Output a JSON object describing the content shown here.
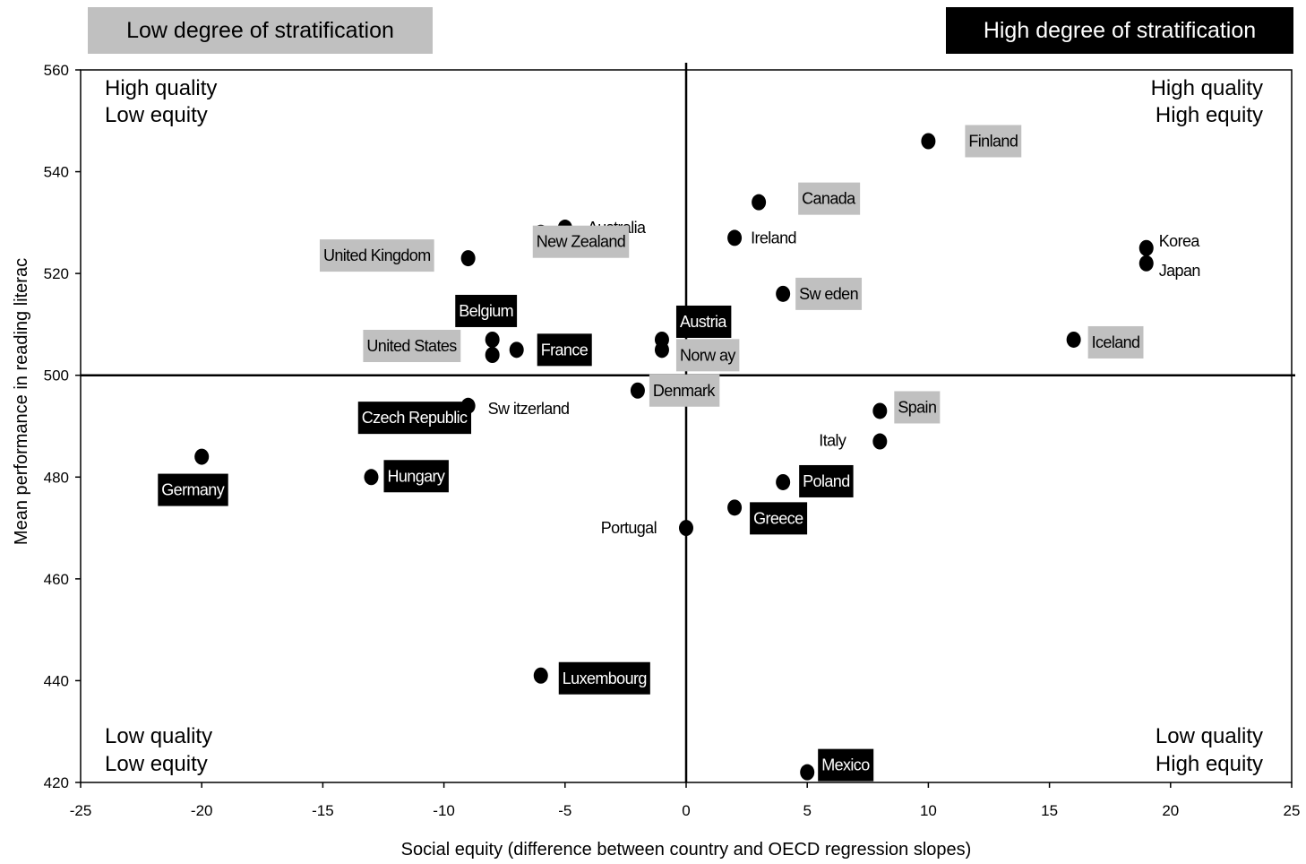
{
  "legend": {
    "low_label": "Low degree of stratification",
    "high_label": "High degree of stratification",
    "low_color": "#c0c0c0",
    "high_color": "#000000"
  },
  "quadrants": {
    "top_left": [
      "High quality",
      "Low equity"
    ],
    "top_right": [
      "High quality",
      "High equity"
    ],
    "bottom_left": [
      "Low quality",
      "Low equity"
    ],
    "bottom_right": [
      "Low quality",
      "High equity"
    ]
  },
  "chart_data": {
    "type": "scatter",
    "xlabel": "Social equity (difference between country and OECD regression slopes)",
    "ylabel": "Mean performance in reading literac",
    "xlim": [
      -25,
      25
    ],
    "ylim": [
      420,
      560
    ],
    "xticks": [
      -25,
      -20,
      -15,
      -10,
      -5,
      0,
      5,
      10,
      15,
      20,
      25
    ],
    "yticks": [
      420,
      440,
      460,
      480,
      500,
      520,
      540,
      560
    ],
    "x_ref": 0,
    "y_ref": 500,
    "grid": false,
    "points": [
      {
        "label": "Finland",
        "x": 10,
        "y": 546,
        "group": "low"
      },
      {
        "label": "Canada",
        "x": 3,
        "y": 534,
        "group": "low"
      },
      {
        "label": "Ireland",
        "x": 2,
        "y": 527,
        "group": "none"
      },
      {
        "label": "Korea",
        "x": 19,
        "y": 525,
        "group": "none"
      },
      {
        "label": "Japan",
        "x": 19,
        "y": 522,
        "group": "none"
      },
      {
        "label": "Sw eden",
        "x": 4,
        "y": 516,
        "group": "low"
      },
      {
        "label": "Iceland",
        "x": 16,
        "y": 507,
        "group": "low"
      },
      {
        "label": "Australia",
        "x": -5,
        "y": 529,
        "group": "none"
      },
      {
        "label": "New Zealand",
        "x": -6,
        "y": 528,
        "group": "low"
      },
      {
        "label": "United Kingdom",
        "x": -9,
        "y": 523,
        "group": "low"
      },
      {
        "label": "Belgium",
        "x": -8,
        "y": 507,
        "group": "high"
      },
      {
        "label": "United States",
        "x": -8,
        "y": 504,
        "group": "low"
      },
      {
        "label": "France",
        "x": -7,
        "y": 505,
        "group": "high"
      },
      {
        "label": "Austria",
        "x": -1,
        "y": 507,
        "group": "high"
      },
      {
        "label": "Norw ay",
        "x": -1,
        "y": 505,
        "group": "low"
      },
      {
        "label": "Denmark",
        "x": -2,
        "y": 497,
        "group": "low"
      },
      {
        "label": "Sw itzerland",
        "x": -9,
        "y": 494,
        "group": "none"
      },
      {
        "label": "Czech Republic",
        "x": -10,
        "y": 492,
        "group": "high"
      },
      {
        "label": "Germany",
        "x": -20,
        "y": 484,
        "group": "high"
      },
      {
        "label": "Hungary",
        "x": -13,
        "y": 480,
        "group": "high"
      },
      {
        "label": "Spain",
        "x": 8,
        "y": 493,
        "group": "low"
      },
      {
        "label": "Italy",
        "x": 8,
        "y": 487,
        "group": "none"
      },
      {
        "label": "Poland",
        "x": 4,
        "y": 479,
        "group": "high"
      },
      {
        "label": "Greece",
        "x": 2,
        "y": 474,
        "group": "high"
      },
      {
        "label": "Portugal",
        "x": 0,
        "y": 470,
        "group": "none"
      },
      {
        "label": "Luxembourg",
        "x": -6,
        "y": 441,
        "group": "high"
      },
      {
        "label": "Mexico",
        "x": 5,
        "y": 422,
        "group": "high"
      }
    ]
  }
}
